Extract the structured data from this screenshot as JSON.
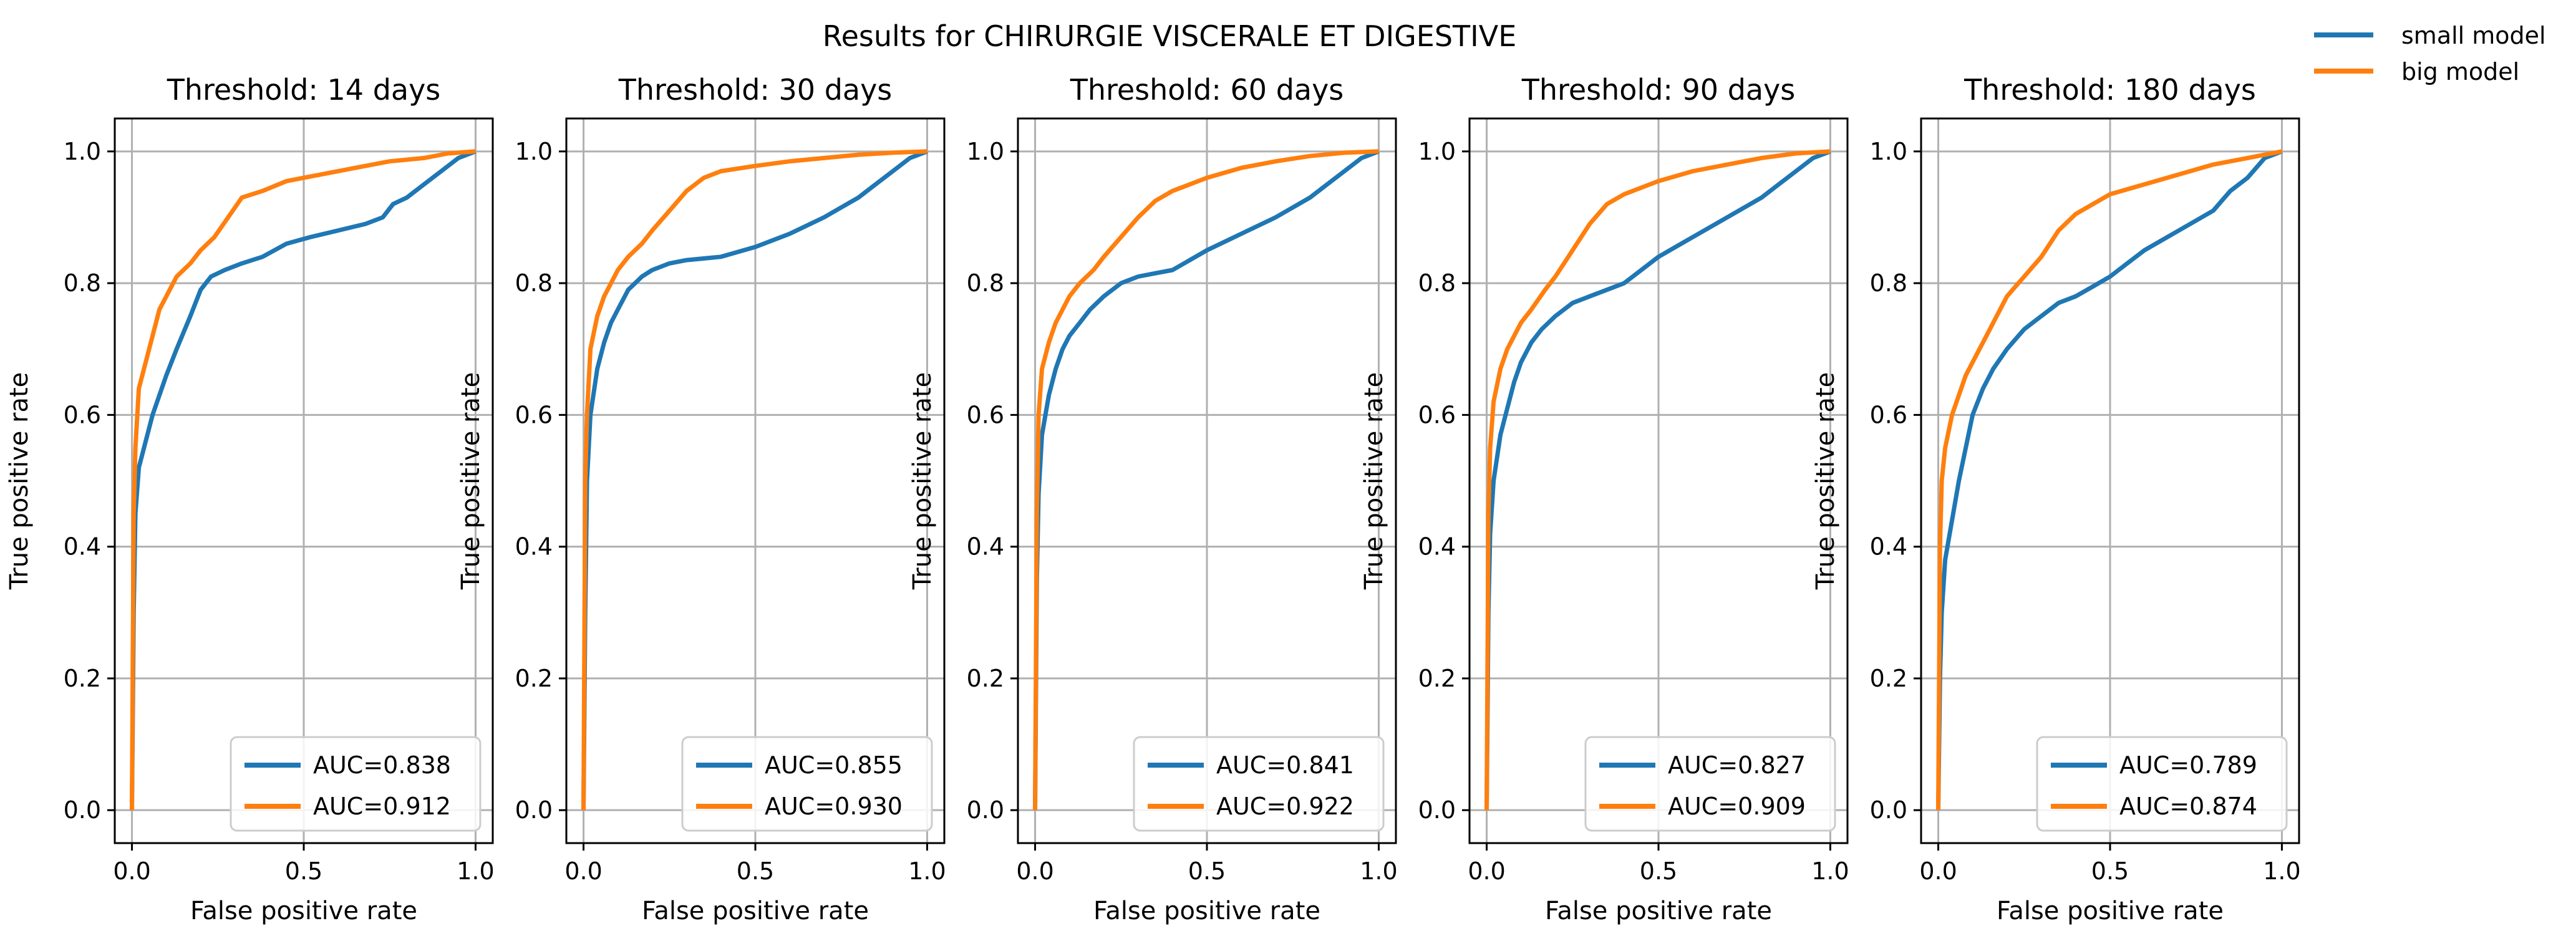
{
  "figure": {
    "suptitle": "Results for CHIRURGIE VISCERALE ET DIGESTIVE",
    "series_names": [
      "small model",
      "big model"
    ],
    "colors": {
      "small": "#1f77b4",
      "big": "#ff7f0e",
      "grid": "#b0b0b0",
      "legend_border": "#cccccc"
    }
  },
  "chart_data": [
    {
      "type": "line",
      "title": "Threshold: 14 days",
      "xlabel": "False positive rate",
      "ylabel": "True positive rate",
      "xlim": [
        -0.05,
        1.05
      ],
      "ylim": [
        -0.05,
        1.05
      ],
      "xticks": [
        0.0,
        0.5,
        1.0
      ],
      "xtick_labels": [
        "0.0",
        "0.5",
        "1.0"
      ],
      "yticks": [
        0.0,
        0.2,
        0.4,
        0.6,
        0.8,
        1.0
      ],
      "ytick_labels": [
        "0.0",
        "0.2",
        "0.4",
        "0.6",
        "0.8",
        "1.0"
      ],
      "grid": true,
      "legend_position": "lower right",
      "series": [
        {
          "label": "AUC=0.838",
          "x": [
            0,
            0.005,
            0.01,
            0.02,
            0.04,
            0.06,
            0.08,
            0.1,
            0.13,
            0.17,
            0.2,
            0.23,
            0.27,
            0.32,
            0.38,
            0.45,
            0.52,
            0.6,
            0.68,
            0.73,
            0.76,
            0.8,
            0.85,
            0.9,
            0.95,
            1.0
          ],
          "y": [
            0,
            0.3,
            0.45,
            0.52,
            0.56,
            0.6,
            0.63,
            0.66,
            0.7,
            0.75,
            0.79,
            0.81,
            0.82,
            0.83,
            0.84,
            0.86,
            0.87,
            0.88,
            0.89,
            0.9,
            0.92,
            0.93,
            0.95,
            0.97,
            0.99,
            1.0
          ]
        },
        {
          "label": "AUC=0.912",
          "x": [
            0,
            0.005,
            0.01,
            0.02,
            0.04,
            0.06,
            0.08,
            0.1,
            0.13,
            0.17,
            0.2,
            0.24,
            0.28,
            0.32,
            0.38,
            0.45,
            0.55,
            0.65,
            0.75,
            0.85,
            0.92,
            1.0
          ],
          "y": [
            0,
            0.45,
            0.55,
            0.64,
            0.68,
            0.72,
            0.76,
            0.78,
            0.81,
            0.83,
            0.85,
            0.87,
            0.9,
            0.93,
            0.94,
            0.955,
            0.965,
            0.975,
            0.985,
            0.99,
            0.997,
            1.0
          ]
        }
      ]
    },
    {
      "type": "line",
      "title": "Threshold: 30 days",
      "xlabel": "False positive rate",
      "ylabel": "True positive rate",
      "xlim": [
        -0.05,
        1.05
      ],
      "ylim": [
        -0.05,
        1.05
      ],
      "xticks": [
        0.0,
        0.5,
        1.0
      ],
      "xtick_labels": [
        "0.0",
        "0.5",
        "1.0"
      ],
      "yticks": [
        0.0,
        0.2,
        0.4,
        0.6,
        0.8,
        1.0
      ],
      "ytick_labels": [
        "0.0",
        "0.2",
        "0.4",
        "0.6",
        "0.8",
        "1.0"
      ],
      "grid": true,
      "legend_position": "lower right",
      "series": [
        {
          "label": "AUC=0.855",
          "x": [
            0,
            0.005,
            0.01,
            0.02,
            0.04,
            0.06,
            0.08,
            0.1,
            0.13,
            0.17,
            0.2,
            0.25,
            0.3,
            0.4,
            0.5,
            0.6,
            0.7,
            0.75,
            0.8,
            0.85,
            0.9,
            0.95,
            1.0
          ],
          "y": [
            0,
            0.3,
            0.5,
            0.6,
            0.67,
            0.71,
            0.74,
            0.76,
            0.79,
            0.81,
            0.82,
            0.83,
            0.835,
            0.84,
            0.855,
            0.875,
            0.9,
            0.915,
            0.93,
            0.95,
            0.97,
            0.99,
            1.0
          ]
        },
        {
          "label": "AUC=0.930",
          "x": [
            0,
            0.005,
            0.01,
            0.02,
            0.04,
            0.06,
            0.08,
            0.1,
            0.13,
            0.17,
            0.2,
            0.25,
            0.3,
            0.35,
            0.4,
            0.5,
            0.6,
            0.7,
            0.8,
            0.9,
            1.0
          ],
          "y": [
            0,
            0.5,
            0.6,
            0.7,
            0.75,
            0.78,
            0.8,
            0.82,
            0.84,
            0.86,
            0.88,
            0.91,
            0.94,
            0.96,
            0.97,
            0.978,
            0.985,
            0.99,
            0.995,
            0.998,
            1.0
          ]
        }
      ]
    },
    {
      "type": "line",
      "title": "Threshold: 60 days",
      "xlabel": "False positive rate",
      "ylabel": "True positive rate",
      "xlim": [
        -0.05,
        1.05
      ],
      "ylim": [
        -0.05,
        1.05
      ],
      "xticks": [
        0.0,
        0.5,
        1.0
      ],
      "xtick_labels": [
        "0.0",
        "0.5",
        "1.0"
      ],
      "yticks": [
        0.0,
        0.2,
        0.4,
        0.6,
        0.8,
        1.0
      ],
      "ytick_labels": [
        "0.0",
        "0.2",
        "0.4",
        "0.6",
        "0.8",
        "1.0"
      ],
      "grid": true,
      "legend_position": "lower right",
      "series": [
        {
          "label": "AUC=0.841",
          "x": [
            0,
            0.005,
            0.01,
            0.02,
            0.04,
            0.06,
            0.08,
            0.1,
            0.13,
            0.16,
            0.2,
            0.25,
            0.3,
            0.35,
            0.4,
            0.5,
            0.6,
            0.7,
            0.8,
            0.85,
            0.9,
            0.95,
            1.0
          ],
          "y": [
            0,
            0.35,
            0.48,
            0.57,
            0.63,
            0.67,
            0.7,
            0.72,
            0.74,
            0.76,
            0.78,
            0.8,
            0.81,
            0.815,
            0.82,
            0.85,
            0.875,
            0.9,
            0.93,
            0.95,
            0.97,
            0.99,
            1.0
          ]
        },
        {
          "label": "AUC=0.922",
          "x": [
            0,
            0.005,
            0.01,
            0.02,
            0.04,
            0.06,
            0.08,
            0.1,
            0.13,
            0.17,
            0.2,
            0.25,
            0.3,
            0.35,
            0.4,
            0.5,
            0.6,
            0.7,
            0.8,
            0.9,
            1.0
          ],
          "y": [
            0,
            0.45,
            0.6,
            0.67,
            0.71,
            0.74,
            0.76,
            0.78,
            0.8,
            0.82,
            0.84,
            0.87,
            0.9,
            0.925,
            0.94,
            0.96,
            0.975,
            0.985,
            0.993,
            0.998,
            1.0
          ]
        }
      ]
    },
    {
      "type": "line",
      "title": "Threshold: 90 days",
      "xlabel": "False positive rate",
      "ylabel": "True positive rate",
      "xlim": [
        -0.05,
        1.05
      ],
      "ylim": [
        -0.05,
        1.05
      ],
      "xticks": [
        0.0,
        0.5,
        1.0
      ],
      "xtick_labels": [
        "0.0",
        "0.5",
        "1.0"
      ],
      "yticks": [
        0.0,
        0.2,
        0.4,
        0.6,
        0.8,
        1.0
      ],
      "ytick_labels": [
        "0.0",
        "0.2",
        "0.4",
        "0.6",
        "0.8",
        "1.0"
      ],
      "grid": true,
      "legend_position": "lower right",
      "series": [
        {
          "label": "AUC=0.827",
          "x": [
            0,
            0.005,
            0.01,
            0.02,
            0.04,
            0.06,
            0.08,
            0.1,
            0.13,
            0.16,
            0.2,
            0.25,
            0.3,
            0.35,
            0.4,
            0.5,
            0.6,
            0.7,
            0.8,
            0.85,
            0.9,
            0.95,
            1.0
          ],
          "y": [
            0,
            0.3,
            0.42,
            0.5,
            0.57,
            0.61,
            0.65,
            0.68,
            0.71,
            0.73,
            0.75,
            0.77,
            0.78,
            0.79,
            0.8,
            0.84,
            0.87,
            0.9,
            0.93,
            0.95,
            0.97,
            0.99,
            1.0
          ]
        },
        {
          "label": "AUC=0.909",
          "x": [
            0,
            0.005,
            0.01,
            0.02,
            0.04,
            0.06,
            0.08,
            0.1,
            0.13,
            0.17,
            0.2,
            0.25,
            0.3,
            0.35,
            0.4,
            0.5,
            0.6,
            0.7,
            0.8,
            0.9,
            1.0
          ],
          "y": [
            0,
            0.45,
            0.55,
            0.62,
            0.67,
            0.7,
            0.72,
            0.74,
            0.76,
            0.79,
            0.81,
            0.85,
            0.89,
            0.92,
            0.935,
            0.955,
            0.97,
            0.98,
            0.99,
            0.997,
            1.0
          ]
        }
      ]
    },
    {
      "type": "line",
      "title": "Threshold: 180 days",
      "xlabel": "False positive rate",
      "ylabel": "True positive rate",
      "xlim": [
        -0.05,
        1.05
      ],
      "ylim": [
        -0.05,
        1.05
      ],
      "xticks": [
        0.0,
        0.5,
        1.0
      ],
      "xtick_labels": [
        "0.0",
        "0.5",
        "1.0"
      ],
      "yticks": [
        0.0,
        0.2,
        0.4,
        0.6,
        0.8,
        1.0
      ],
      "ytick_labels": [
        "0.0",
        "0.2",
        "0.4",
        "0.6",
        "0.8",
        "1.0"
      ],
      "grid": true,
      "legend_position": "lower right",
      "series": [
        {
          "label": "AUC=0.789",
          "x": [
            0,
            0.005,
            0.01,
            0.02,
            0.04,
            0.06,
            0.08,
            0.1,
            0.13,
            0.16,
            0.2,
            0.25,
            0.3,
            0.35,
            0.4,
            0.45,
            0.5,
            0.55,
            0.6,
            0.7,
            0.8,
            0.85,
            0.9,
            0.95,
            1.0
          ],
          "y": [
            0,
            0.2,
            0.3,
            0.38,
            0.44,
            0.5,
            0.55,
            0.6,
            0.64,
            0.67,
            0.7,
            0.73,
            0.75,
            0.77,
            0.78,
            0.795,
            0.81,
            0.83,
            0.85,
            0.88,
            0.91,
            0.94,
            0.96,
            0.99,
            1.0
          ]
        },
        {
          "label": "AUC=0.874",
          "x": [
            0,
            0.005,
            0.01,
            0.02,
            0.04,
            0.06,
            0.08,
            0.1,
            0.13,
            0.17,
            0.2,
            0.25,
            0.3,
            0.35,
            0.4,
            0.45,
            0.5,
            0.6,
            0.7,
            0.8,
            0.9,
            0.95,
            1.0
          ],
          "y": [
            0,
            0.4,
            0.5,
            0.55,
            0.6,
            0.63,
            0.66,
            0.68,
            0.71,
            0.75,
            0.78,
            0.81,
            0.84,
            0.88,
            0.905,
            0.92,
            0.935,
            0.95,
            0.965,
            0.98,
            0.99,
            0.995,
            1.0
          ]
        }
      ]
    }
  ]
}
